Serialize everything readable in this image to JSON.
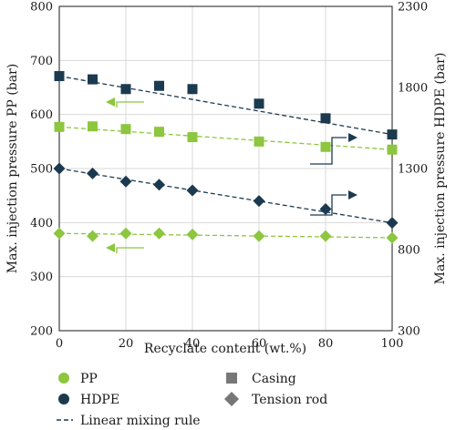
{
  "chart_data": {
    "type": "scatter",
    "xlabel": "Recyclate content (wt.%)",
    "ylabel_left": "Max. injection pressure PP (bar)",
    "ylabel_right": "Max. injection pressure HDPE (bar)",
    "xlim": [
      0,
      100
    ],
    "ylim_left": [
      200,
      800
    ],
    "ylim_right": [
      300,
      2300
    ],
    "xticks": [
      0,
      20,
      40,
      60,
      80,
      100
    ],
    "yticks_left": [
      200,
      300,
      400,
      500,
      600,
      700,
      800
    ],
    "yticks_right": [
      300,
      800,
      1300,
      1800,
      2300
    ],
    "grid": true,
    "colors": {
      "PP": "#8dc63f",
      "HDPE": "#1b3a4f"
    },
    "series": [
      {
        "material": "PP",
        "shape": "Casing",
        "axis": "left",
        "x": [
          0,
          10,
          20,
          30,
          40,
          60,
          80,
          100
        ],
        "y": [
          577,
          578,
          573,
          568,
          558,
          550,
          540,
          535
        ],
        "fit": [
          577,
          535
        ]
      },
      {
        "material": "PP",
        "shape": "Tension rod",
        "axis": "left",
        "x": [
          0,
          10,
          20,
          30,
          40,
          60,
          80,
          100
        ],
        "y": [
          380,
          375,
          380,
          380,
          378,
          375,
          375,
          372
        ],
        "fit": [
          380,
          372
        ]
      },
      {
        "material": "HDPE",
        "shape": "Casing",
        "axis": "right",
        "x": [
          0,
          10,
          20,
          30,
          40,
          60,
          80,
          100
        ],
        "y": [
          1870,
          1850,
          1790,
          1810,
          1790,
          1700,
          1610,
          1510
        ],
        "fit": [
          1870,
          1510
        ]
      },
      {
        "material": "HDPE",
        "shape": "Tension rod",
        "axis": "right",
        "x": [
          0,
          10,
          20,
          30,
          40,
          60,
          80,
          100
        ],
        "y": [
          1300,
          1270,
          1220,
          1200,
          1165,
          1100,
          1050,
          965
        ],
        "fit": [
          1300,
          965
        ]
      }
    ],
    "legend": {
      "pp": "PP",
      "hdpe": "HDPE",
      "casing": "Casing",
      "tension_rod": "Tension rod",
      "linear_mixing": "Linear mixing rule"
    }
  }
}
